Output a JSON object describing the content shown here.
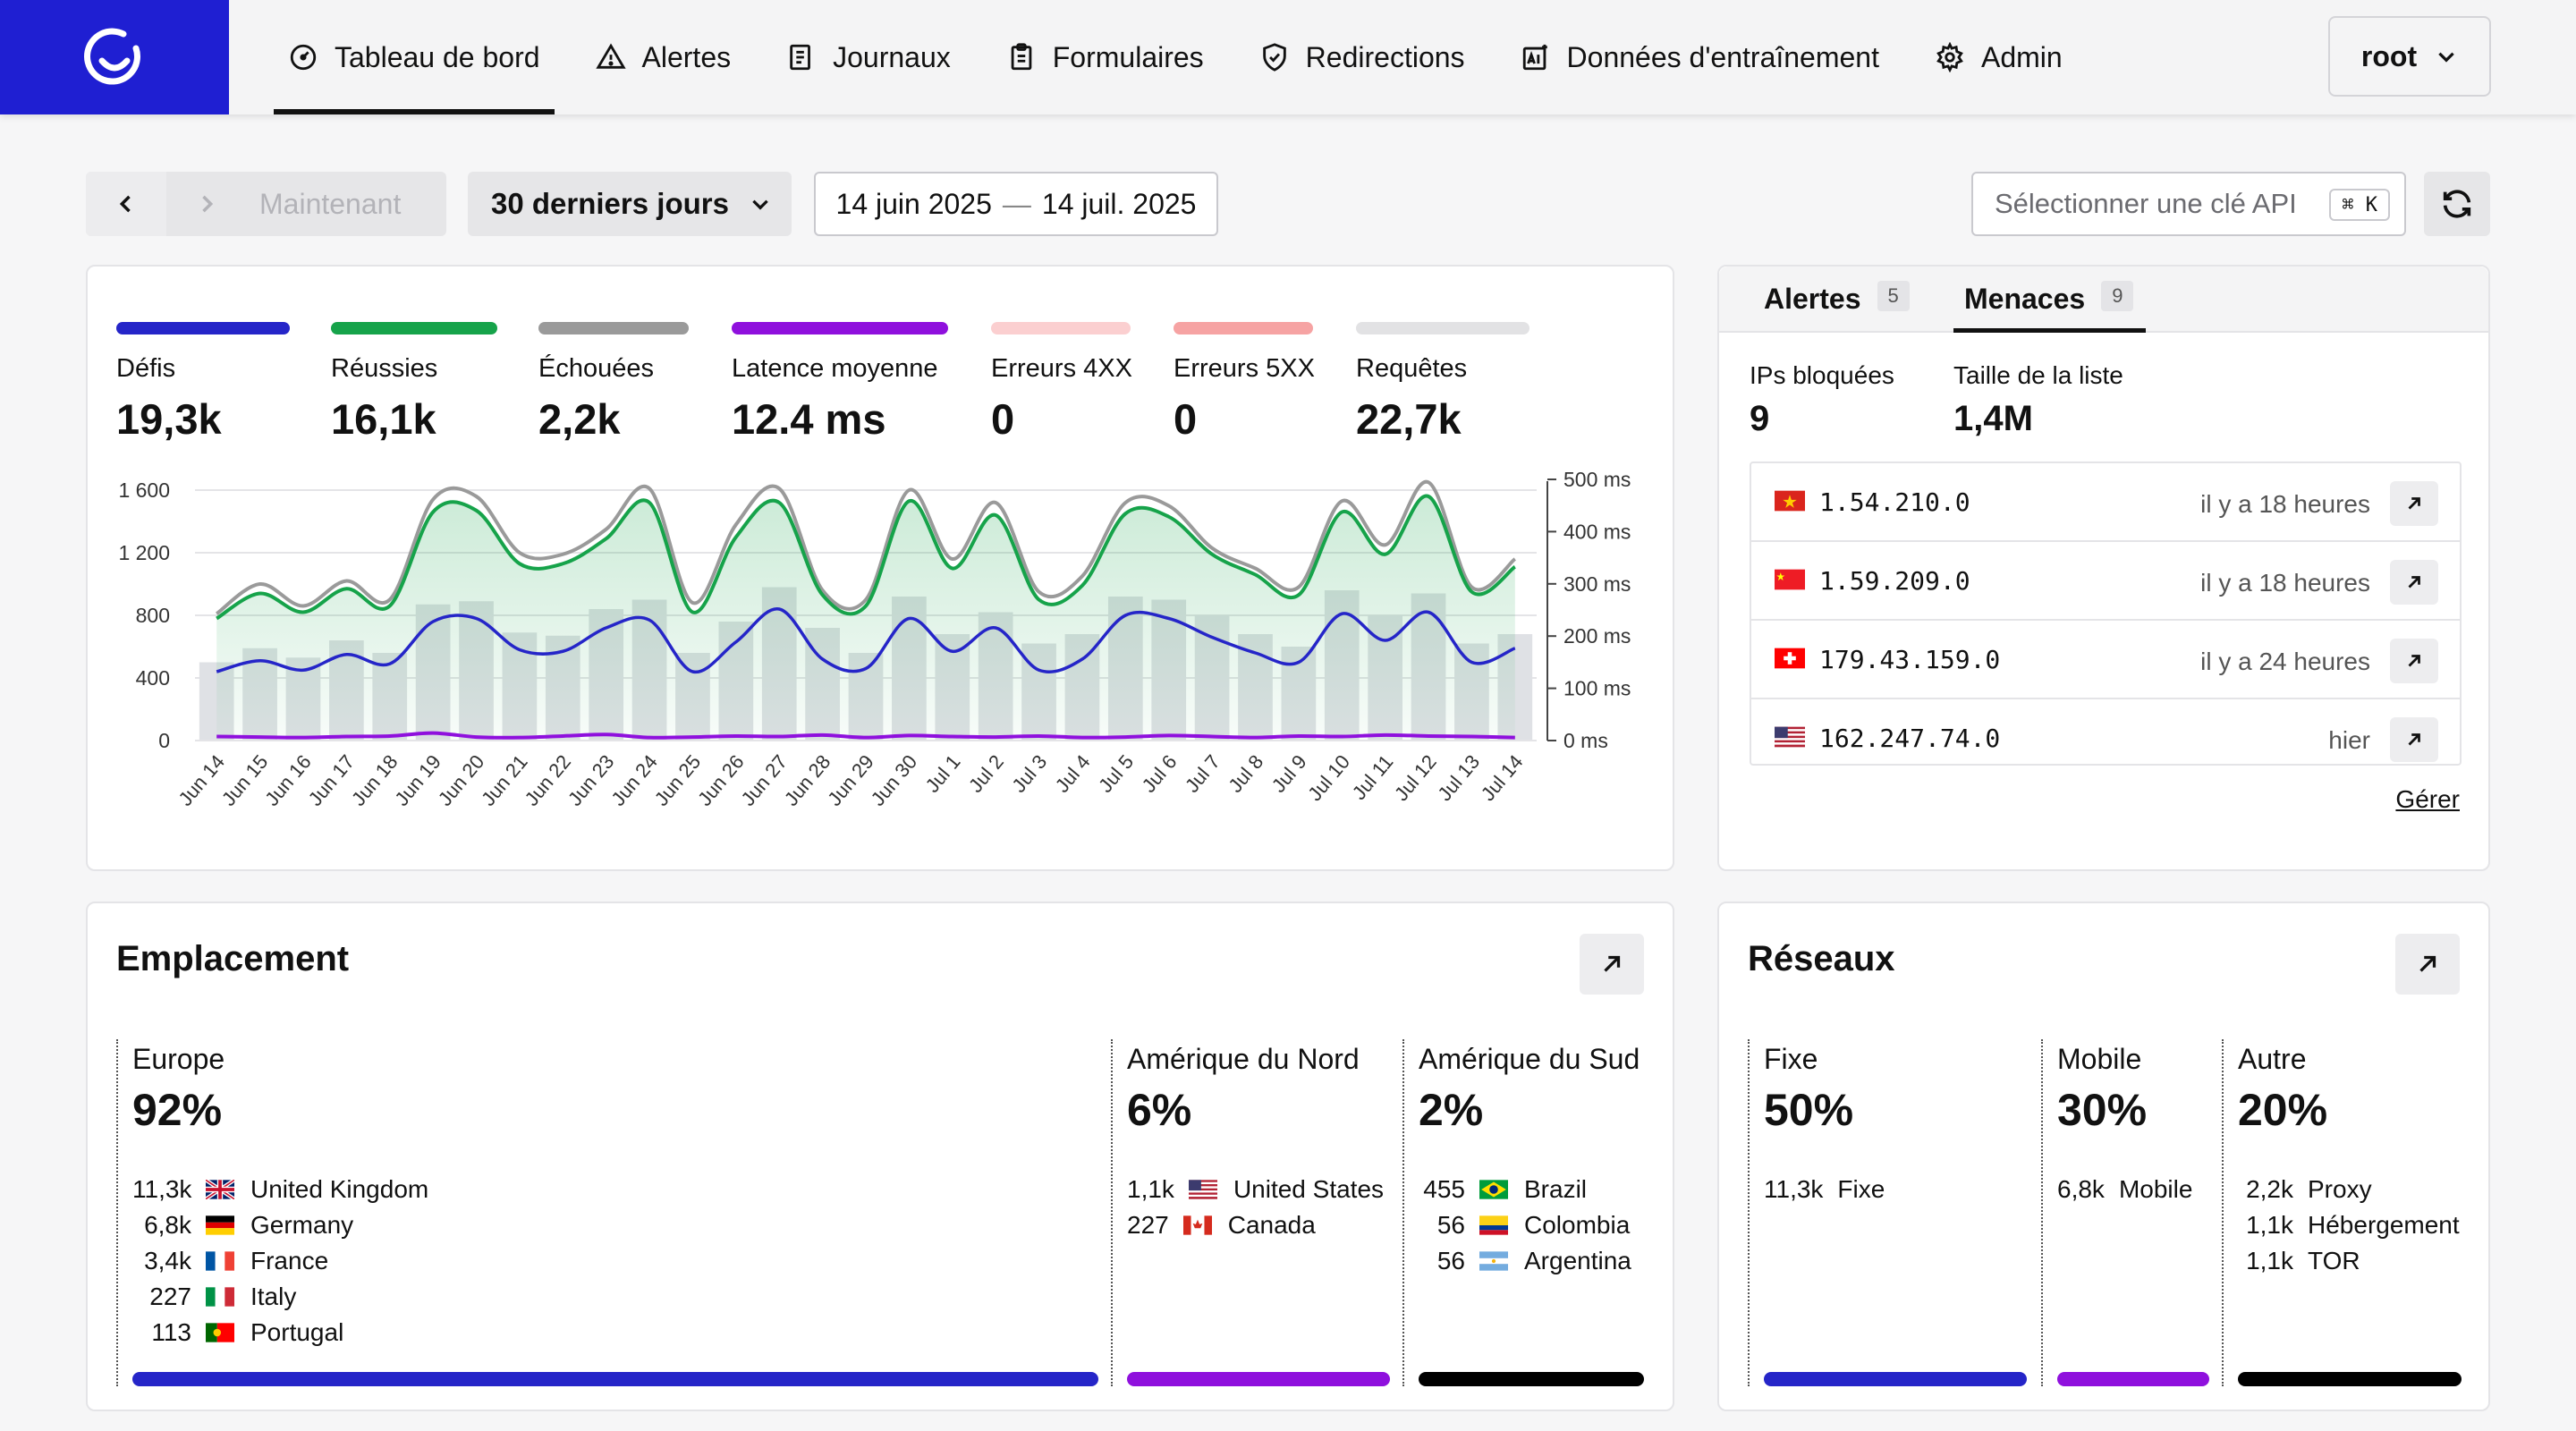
{
  "nav": {
    "items": [
      {
        "label": "Tableau de bord",
        "icon": "gauge-icon",
        "active": true
      },
      {
        "label": "Alertes",
        "icon": "warning-icon"
      },
      {
        "label": "Journaux",
        "icon": "log-icon"
      },
      {
        "label": "Formulaires",
        "icon": "clipboard-icon"
      },
      {
        "label": "Redirections",
        "icon": "shield-icon"
      },
      {
        "label": "Données d'entraînement",
        "icon": "ai-icon"
      },
      {
        "label": "Admin",
        "icon": "gear-icon"
      }
    ],
    "user": "root"
  },
  "toolbar": {
    "now_label": "Maintenant",
    "range_label": "30 derniers jours",
    "date_start": "14 juin 2025",
    "date_sep": "—",
    "date_end": "14 juil. 2025",
    "api_placeholder": "Sélectionner une clé API",
    "api_shortcut": "⌘ K"
  },
  "metrics": [
    {
      "label": "Défis",
      "value": "19,3k",
      "color": "#2525c8"
    },
    {
      "label": "Réussies",
      "value": "16,1k",
      "color": "#16a34a"
    },
    {
      "label": "Échouées",
      "value": "2,2k",
      "color": "#9a9a9a"
    },
    {
      "label": "Latence moyenne",
      "value": "12.4 ms",
      "color": "#8f10dd"
    },
    {
      "label": "Erreurs 4XX",
      "value": "0",
      "color": "#fbcfd0"
    },
    {
      "label": "Erreurs 5XX",
      "value": "0",
      "color": "#f6a3a3"
    },
    {
      "label": "Requêtes",
      "value": "22,7k",
      "color": "#e2e2e4"
    }
  ],
  "chart_data": {
    "type": "line",
    "categories": [
      "Jun 14",
      "Jun 15",
      "Jun 16",
      "Jun 17",
      "Jun 18",
      "Jun 19",
      "Jun 20",
      "Jun 21",
      "Jun 22",
      "Jun 23",
      "Jun 24",
      "Jun 25",
      "Jun 26",
      "Jun 27",
      "Jun 28",
      "Jun 29",
      "Jun 30",
      "Jul 1",
      "Jul 2",
      "Jul 3",
      "Jul 4",
      "Jul 5",
      "Jul 6",
      "Jul 7",
      "Jul 8",
      "Jul 9",
      "Jul 10",
      "Jul 11",
      "Jul 12",
      "Jul 13",
      "Jul 14"
    ],
    "left_ticks": [
      "0",
      "400",
      "800",
      "1 200",
      "1 600"
    ],
    "right_ticks": [
      "0 ms",
      "100 ms",
      "200 ms",
      "300 ms",
      "400 ms",
      "500 ms"
    ],
    "ylim": [
      0,
      1600
    ],
    "y2lim": [
      0,
      500
    ],
    "series": [
      {
        "name": "Requêtes",
        "type": "bar",
        "color": "#dfe1e5",
        "values": [
          500,
          590,
          530,
          640,
          560,
          870,
          890,
          690,
          670,
          840,
          900,
          560,
          760,
          980,
          720,
          560,
          920,
          680,
          820,
          620,
          680,
          920,
          900,
          800,
          680,
          600,
          960,
          800,
          940,
          620,
          680
        ]
      },
      {
        "name": "Échouées",
        "type": "line",
        "color": "#9a9a9a",
        "values": [
          810,
          1000,
          860,
          1020,
          900,
          1540,
          1560,
          1200,
          1190,
          1350,
          1610,
          880,
          1380,
          1610,
          960,
          900,
          1600,
          1160,
          1520,
          950,
          1050,
          1520,
          1500,
          1230,
          1100,
          980,
          1530,
          1250,
          1650,
          980,
          1160
        ]
      },
      {
        "name": "Réussies",
        "type": "area",
        "color": "#16a34a",
        "values": [
          780,
          940,
          820,
          970,
          860,
          1460,
          1470,
          1130,
          1130,
          1290,
          1520,
          820,
          1300,
          1520,
          930,
          860,
          1530,
          1100,
          1440,
          900,
          990,
          1450,
          1430,
          1190,
          1060,
          930,
          1460,
          1190,
          1560,
          950,
          1110
        ]
      },
      {
        "name": "Défis",
        "type": "line",
        "color": "#2525c8",
        "values": [
          440,
          510,
          450,
          550,
          490,
          760,
          780,
          580,
          570,
          720,
          770,
          440,
          630,
          840,
          520,
          460,
          780,
          570,
          720,
          450,
          520,
          800,
          780,
          660,
          560,
          500,
          810,
          640,
          820,
          500,
          590
        ]
      },
      {
        "name": "Latence moyenne",
        "type": "line",
        "axis": "right",
        "color": "#8f10dd",
        "values": [
          8,
          7,
          6,
          8,
          9,
          15,
          7,
          6,
          9,
          12,
          6,
          7,
          9,
          8,
          11,
          6,
          10,
          8,
          7,
          9,
          6,
          7,
          10,
          8,
          6,
          9,
          8,
          11,
          9,
          8,
          6
        ]
      }
    ]
  },
  "threats": {
    "tabs": [
      {
        "label": "Alertes",
        "count": "5"
      },
      {
        "label": "Menaces",
        "count": "9",
        "active": true
      }
    ],
    "blocked_label": "IPs bloquées",
    "blocked_value": "9",
    "list_size_label": "Taille de la liste",
    "list_size_value": "1,4M",
    "ips": [
      {
        "ip": "1.54.210.0",
        "time": "il y a 18 heures",
        "flag": "vn"
      },
      {
        "ip": "1.59.209.0",
        "time": "il y a 18 heures",
        "flag": "cn"
      },
      {
        "ip": "179.43.159.0",
        "time": "il y a 24 heures",
        "flag": "ch"
      },
      {
        "ip": "162.247.74.0",
        "time": "hier",
        "flag": "us"
      }
    ],
    "manage_label": "Gérer"
  },
  "location": {
    "title": "Emplacement",
    "regions": [
      {
        "name": "Europe",
        "pct": "92%",
        "color": "#2525c8",
        "countries": [
          {
            "count": "11,3k",
            "name": "United Kingdom",
            "flag": "gb"
          },
          {
            "count": "6,8k",
            "name": "Germany",
            "flag": "de"
          },
          {
            "count": "3,4k",
            "name": "France",
            "flag": "fr"
          },
          {
            "count": "227",
            "name": "Italy",
            "flag": "it"
          },
          {
            "count": "113",
            "name": "Portugal",
            "flag": "pt"
          }
        ]
      },
      {
        "name": "Amérique du Nord",
        "pct": "6%",
        "color": "#8f10dd",
        "countries": [
          {
            "count": "1,1k",
            "name": "United States",
            "flag": "us"
          },
          {
            "count": "227",
            "name": "Canada",
            "flag": "ca"
          }
        ]
      },
      {
        "name": "Amérique du Sud",
        "pct": "2%",
        "color": "#000000",
        "countries": [
          {
            "count": "455",
            "name": "Brazil",
            "flag": "br"
          },
          {
            "count": "56",
            "name": "Colombia",
            "flag": "co"
          },
          {
            "count": "56",
            "name": "Argentina",
            "flag": "ar"
          }
        ]
      }
    ]
  },
  "networks": {
    "title": "Réseaux",
    "groups": [
      {
        "name": "Fixe",
        "pct": "50%",
        "color": "#2525c8",
        "items": [
          {
            "count": "11,3k",
            "name": "Fixe"
          }
        ]
      },
      {
        "name": "Mobile",
        "pct": "30%",
        "color": "#8f10dd",
        "items": [
          {
            "count": "6,8k",
            "name": "Mobile"
          }
        ]
      },
      {
        "name": "Autre",
        "pct": "20%",
        "color": "#000000",
        "items": [
          {
            "count": "2,2k",
            "name": "Proxy"
          },
          {
            "count": "1,1k",
            "name": "Hébergement"
          },
          {
            "count": "1,1k",
            "name": "TOR"
          }
        ]
      }
    ]
  }
}
